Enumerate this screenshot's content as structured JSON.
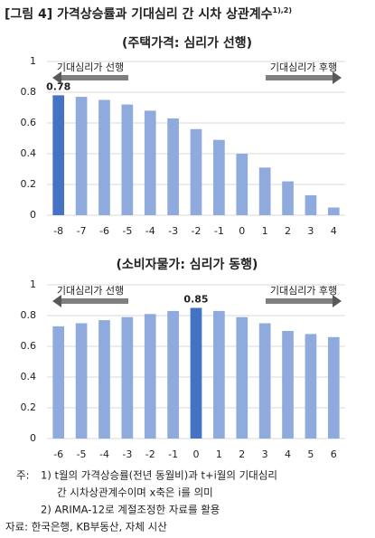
{
  "title": "[그림 4] 가격상승률과 기대심리 간 시차 상관계수",
  "title_sup": "1),2)",
  "chart_data": [
    {
      "type": "bar",
      "title": "(주택가격: 심리가 선행)",
      "categories": [
        "-8",
        "-7",
        "-6",
        "-5",
        "-4",
        "-3",
        "-2",
        "-1",
        "0",
        "1",
        "2",
        "3",
        "4"
      ],
      "values": [
        0.78,
        0.77,
        0.75,
        0.72,
        0.68,
        0.63,
        0.56,
        0.49,
        0.4,
        0.31,
        0.22,
        0.13,
        0.05
      ],
      "value_labels": [
        "0.78",
        null,
        null,
        null,
        null,
        null,
        null,
        null,
        null,
        null,
        null,
        null,
        null
      ],
      "colors": [
        "#4472c4",
        "#8faadc",
        "#8faadc",
        "#8faadc",
        "#8faadc",
        "#8faadc",
        "#8faadc",
        "#8faadc",
        "#8faadc",
        "#8faadc",
        "#8faadc",
        "#8faadc",
        "#8faadc"
      ],
      "ylim": [
        0,
        1
      ],
      "yticks": [
        0,
        0.2,
        0.4,
        0.6,
        0.8,
        1
      ],
      "grid": true,
      "annotations": [
        {
          "text": "기대심리가 선행",
          "direction": "left"
        },
        {
          "text": "기대심리가 후행",
          "direction": "right"
        }
      ]
    },
    {
      "type": "bar",
      "title": "(소비자물가: 심리가 동행)",
      "categories": [
        "-6",
        "-5",
        "-4",
        "-3",
        "-2",
        "-1",
        "0",
        "1",
        "2",
        "3",
        "4",
        "5",
        "6"
      ],
      "values": [
        0.73,
        0.75,
        0.77,
        0.79,
        0.81,
        0.83,
        0.85,
        0.83,
        0.79,
        0.75,
        0.7,
        0.68,
        0.66
      ],
      "value_labels": [
        null,
        null,
        null,
        null,
        null,
        null,
        "0.85",
        null,
        null,
        null,
        null,
        null,
        null
      ],
      "colors": [
        "#8faadc",
        "#8faadc",
        "#8faadc",
        "#8faadc",
        "#8faadc",
        "#8faadc",
        "#4472c4",
        "#8faadc",
        "#8faadc",
        "#8faadc",
        "#8faadc",
        "#8faadc",
        "#8faadc"
      ],
      "ylim": [
        0,
        1
      ],
      "yticks": [
        0,
        0.2,
        0.4,
        0.6,
        0.8,
        1
      ],
      "grid": true,
      "annotations": [
        {
          "text": "기대심리가 선행",
          "direction": "left"
        },
        {
          "text": "기대심리가 후행",
          "direction": "right"
        }
      ]
    }
  ],
  "note_label": "주:",
  "notes": [
    "1) t월의 가격상승률(전년 동월비)과 t+i월의 기대심리",
    "간 시차상관계수이며 x축은 i를 의미",
    "2) ARIMA-12로 계절조정한 자료를 활용"
  ],
  "source": "자료: 한국은행, KB부동산, 자체 시산"
}
